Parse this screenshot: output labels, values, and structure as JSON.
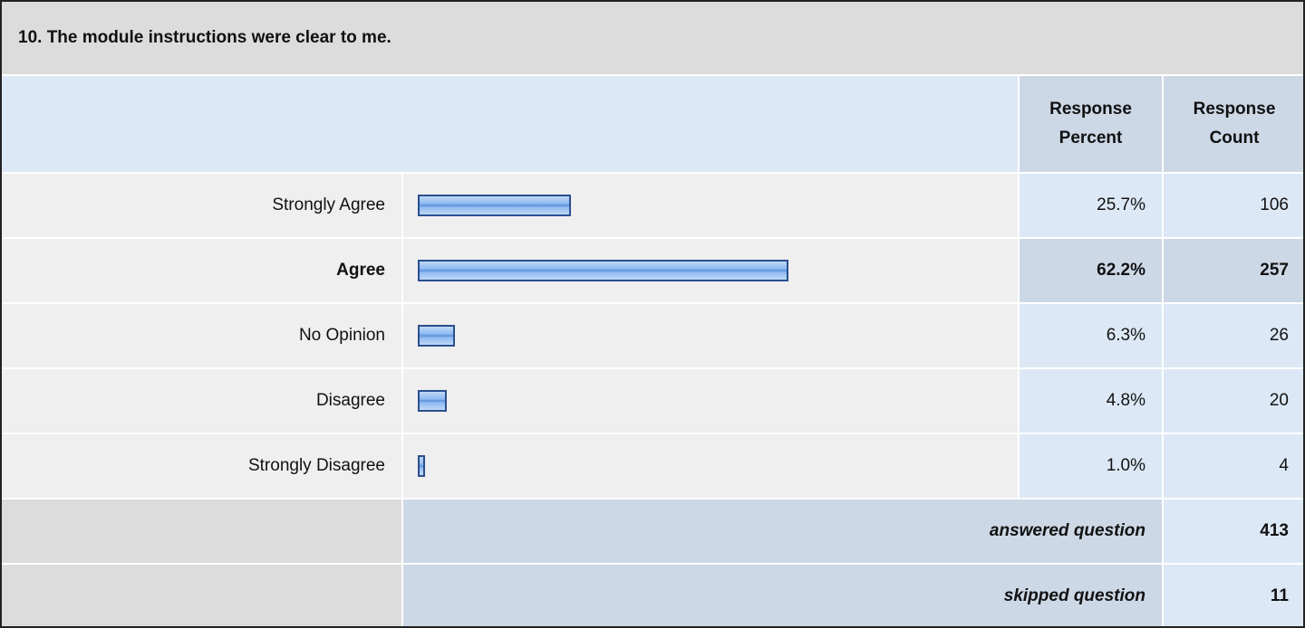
{
  "question": "10. The module instructions were clear to me.",
  "headers": {
    "percent": "Response Percent",
    "count": "Response Count"
  },
  "rows": [
    {
      "label": "Strongly Agree",
      "percent": 25.7,
      "percent_label": "25.7%",
      "count": 106
    },
    {
      "label": "Agree",
      "percent": 62.2,
      "percent_label": "62.2%",
      "count": 257
    },
    {
      "label": "No Opinion",
      "percent": 6.3,
      "percent_label": "6.3%",
      "count": 26
    },
    {
      "label": "Disagree",
      "percent": 4.8,
      "percent_label": "4.8%",
      "count": 20
    },
    {
      "label": "Strongly Disagree",
      "percent": 1.0,
      "percent_label": "1.0%",
      "count": 4
    }
  ],
  "summary": [
    {
      "label": "answered question",
      "count": 413
    },
    {
      "label": "skipped question",
      "count": 11
    }
  ]
}
